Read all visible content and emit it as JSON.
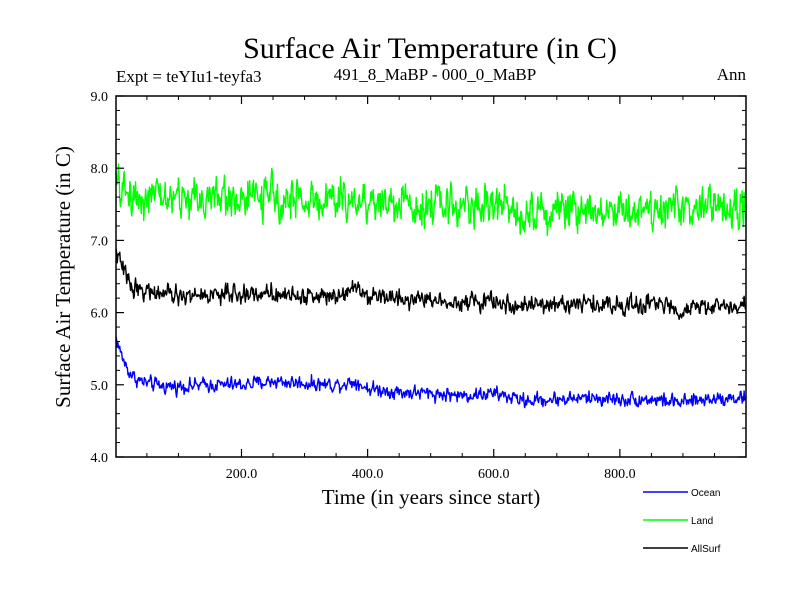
{
  "chart_data": {
    "type": "line",
    "title": "Surface Air Temperature (in C)",
    "left_label": "Expt = teYIu1-teyfa3",
    "center_label": "491_8_MaBP - 000_0_MaBP",
    "right_label": "Ann",
    "xlabel": "Time (in years since start)",
    "ylabel": "Surface Air Temperature (in C)",
    "xlim": [
      1,
      1000
    ],
    "ylim": [
      4.0,
      9.0
    ],
    "x_ticks": [
      200,
      400,
      600,
      800
    ],
    "x_tick_labels": [
      "200.0",
      "400.0",
      "600.0",
      "800.0"
    ],
    "y_ticks": [
      4,
      5,
      6,
      7,
      8,
      9
    ],
    "y_tick_labels": [
      "4.0",
      "5.0",
      "6.0",
      "7.0",
      "8.0",
      "9.0"
    ],
    "grid": false,
    "legend_position": "bottom-right",
    "series": [
      {
        "name": "Ocean",
        "color": "#0000ff",
        "x": [
          1,
          10,
          20,
          30,
          40,
          60,
          80,
          100,
          150,
          200,
          250,
          300,
          350,
          380,
          400,
          450,
          500,
          550,
          600,
          650,
          700,
          750,
          800,
          850,
          900,
          950,
          1000
        ],
        "values": [
          5.65,
          5.4,
          5.2,
          5.1,
          5.05,
          5.0,
          4.98,
          4.98,
          5.0,
          5.0,
          5.05,
          5.02,
          5.0,
          5.05,
          4.95,
          4.9,
          4.88,
          4.85,
          4.88,
          4.78,
          4.8,
          4.82,
          4.8,
          4.8,
          4.75,
          4.82,
          4.82
        ],
        "noise": 0.07
      },
      {
        "name": "Land",
        "color": "#00ff00",
        "x": [
          1,
          10,
          20,
          40,
          60,
          100,
          150,
          200,
          250,
          300,
          350,
          400,
          450,
          500,
          550,
          600,
          650,
          700,
          750,
          800,
          850,
          900,
          950,
          1000
        ],
        "values": [
          7.75,
          7.7,
          7.65,
          7.6,
          7.6,
          7.58,
          7.6,
          7.58,
          7.6,
          7.55,
          7.55,
          7.55,
          7.5,
          7.5,
          7.48,
          7.5,
          7.4,
          7.42,
          7.45,
          7.42,
          7.45,
          7.45,
          7.45,
          7.45
        ],
        "noise": 0.2
      },
      {
        "name": "AllSurf",
        "color": "#000000",
        "x": [
          1,
          10,
          20,
          30,
          50,
          80,
          100,
          150,
          200,
          250,
          300,
          350,
          380,
          400,
          450,
          500,
          550,
          600,
          650,
          700,
          750,
          800,
          850,
          900,
          950,
          1000
        ],
        "values": [
          6.85,
          6.65,
          6.45,
          6.35,
          6.3,
          6.25,
          6.22,
          6.25,
          6.25,
          6.28,
          6.22,
          6.25,
          6.38,
          6.25,
          6.2,
          6.18,
          6.15,
          6.15,
          6.08,
          6.12,
          6.12,
          6.1,
          6.12,
          6.05,
          6.08,
          6.1
        ],
        "noise": 0.09
      }
    ]
  }
}
